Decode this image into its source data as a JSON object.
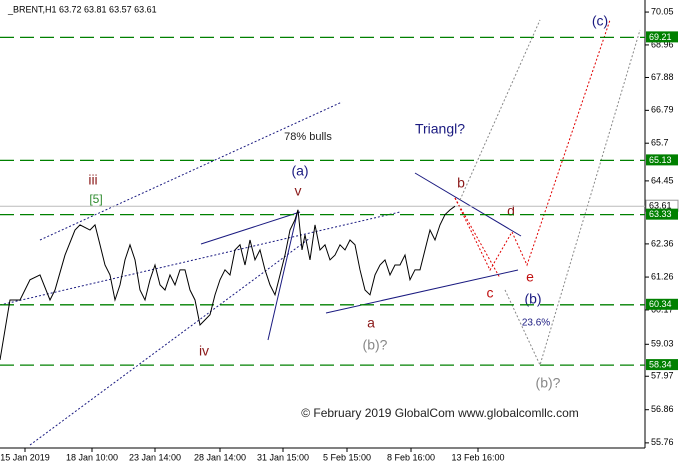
{
  "chart_data": {
    "type": "line",
    "title": "_BRENT,H1  63.72 63.81 63.57 63.61",
    "x": [
      0,
      5,
      10,
      20,
      30,
      40,
      50,
      55,
      65,
      75,
      80,
      90,
      95,
      100,
      105,
      110,
      115,
      120,
      125,
      130,
      135,
      140,
      145,
      150,
      155,
      160,
      165,
      170,
      175,
      180,
      185,
      190,
      195,
      200,
      205,
      210,
      215,
      220,
      225,
      230,
      235,
      240,
      245,
      250,
      255,
      260,
      265,
      270,
      275,
      280,
      285,
      290,
      295,
      298,
      302,
      305,
      310,
      315,
      320,
      325,
      330,
      335,
      340,
      345,
      350,
      355,
      360,
      365,
      370,
      375,
      380,
      385,
      390,
      395,
      400,
      405,
      410,
      415,
      420,
      425,
      430,
      435,
      440,
      445,
      450,
      455
    ],
    "series": [
      {
        "name": "BRENT",
        "color": "#000000",
        "values": [
          58.51,
          59.51,
          60.5,
          60.5,
          61.17,
          61.33,
          60.5,
          60.83,
          61.99,
          62.82,
          62.99,
          62.82,
          62.99,
          62.33,
          61.66,
          61.33,
          60.5,
          61.0,
          61.83,
          62.33,
          61.83,
          60.83,
          60.5,
          61.17,
          61.66,
          61.0,
          60.83,
          61.33,
          61.0,
          61.5,
          61.5,
          60.83,
          60.5,
          59.67,
          59.84,
          60.01,
          60.67,
          61.17,
          61.5,
          61.33,
          62.16,
          62.33,
          61.66,
          62.49,
          61.83,
          62.16,
          61.5,
          61.0,
          60.67,
          61.33,
          61.99,
          62.82,
          63.16,
          63.49,
          62.16,
          62.66,
          61.83,
          62.99,
          62.16,
          62.33,
          61.83,
          61.99,
          62.33,
          62.16,
          62.49,
          62.33,
          61.5,
          60.83,
          60.67,
          61.33,
          61.66,
          61.83,
          61.33,
          61.66,
          61.66,
          61.99,
          61.17,
          61.5,
          61.5,
          62.16,
          62.82,
          62.49,
          62.99,
          63.33,
          63.49,
          63.61
        ]
      }
    ],
    "xlim": [
      0,
      645
    ],
    "xticks": [
      {
        "value": 25,
        "label": "15 Jan 2019"
      },
      {
        "value": 92,
        "label": "18 Jan 10:00"
      },
      {
        "value": 155,
        "label": "23 Jan 14:00"
      },
      {
        "value": 220,
        "label": "28 Jan 14:00"
      },
      {
        "value": 283,
        "label": "31 Jan 15:00"
      },
      {
        "value": 347,
        "label": "5 Feb 15:00"
      },
      {
        "value": 411,
        "label": "8 Feb 16:00"
      },
      {
        "value": 478,
        "label": "13 Feb 16:00"
      }
    ],
    "ylim": [
      55.59,
      70.45
    ],
    "yticks": [
      70.05,
      68.96,
      67.88,
      66.79,
      65.7,
      64.45,
      62.36,
      61.26,
      60.17,
      59.03,
      57.97,
      56.86,
      55.76
    ],
    "levels": [
      69.21,
      65.13,
      63.33,
      60.34,
      58.34
    ],
    "level_color": "#008000",
    "current_price": 63.61,
    "annotations": [
      "(c)",
      "78% bulls",
      "Triangl?",
      "iii",
      "[5]",
      "(a)",
      "v",
      "b",
      "d",
      "e",
      "c",
      "(b)",
      "23.6%",
      "a",
      "(b)?",
      "iv",
      "(b)?"
    ],
    "copyright": "© February 2019 GlobalCom www.globalcomllc.com"
  }
}
